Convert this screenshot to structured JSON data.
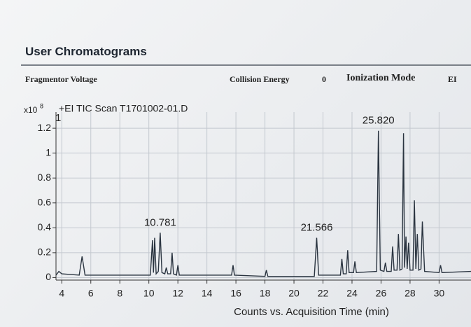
{
  "header": {
    "title": "User Chromatograms",
    "fields": [
      "Fragmentor Voltage",
      "Collision Energy",
      "0",
      "Ionization Mode",
      "EI"
    ]
  },
  "chart_data": {
    "type": "line",
    "title": "+EI TIC Scan T1701002-01.D",
    "x_label": "Counts vs. Acquisition Time (min)",
    "y_unit": "x10",
    "y_unit_exp": "8",
    "color": "#2a3440",
    "grid": true,
    "xlim": [
      3.6,
      32.2
    ],
    "xticks": [
      4,
      6,
      8,
      10,
      12,
      14,
      16,
      18,
      20,
      22,
      24,
      26,
      28,
      30
    ],
    "ylim": [
      -0.02,
      1.33
    ],
    "yticks": [
      0,
      0.2,
      0.4,
      0.6,
      0.8,
      1,
      1.2
    ],
    "x": [
      3.6,
      3.8,
      4.0,
      5.2,
      5.4,
      5.6,
      8.0,
      10.1,
      10.25,
      10.32,
      10.4,
      10.5,
      10.65,
      10.781,
      10.9,
      11.1,
      11.2,
      11.3,
      11.5,
      11.6,
      11.7,
      11.9,
      12.0,
      12.1,
      15.7,
      15.8,
      15.9,
      18.0,
      18.1,
      18.2,
      21.4,
      21.566,
      21.7,
      23.2,
      23.3,
      23.4,
      23.6,
      23.7,
      23.8,
      24.1,
      24.2,
      24.3,
      25.7,
      25.82,
      25.95,
      26.2,
      26.3,
      26.4,
      26.7,
      26.8,
      26.9,
      27.1,
      27.2,
      27.3,
      27.45,
      27.55,
      27.62,
      27.72,
      27.8,
      27.9,
      28.0,
      28.2,
      28.3,
      28.4,
      28.5,
      28.6,
      28.75,
      28.85,
      29.0,
      30.0,
      30.1,
      30.2,
      32.2
    ],
    "values": [
      0.02,
      0.05,
      0.03,
      0.02,
      0.17,
      0.02,
      0.02,
      0.02,
      0.3,
      0.04,
      0.32,
      0.03,
      0.05,
      0.36,
      0.04,
      0.03,
      0.08,
      0.03,
      0.03,
      0.2,
      0.03,
      0.02,
      0.1,
      0.02,
      0.02,
      0.1,
      0.02,
      0.01,
      0.06,
      0.01,
      0.01,
      0.32,
      0.02,
      0.02,
      0.15,
      0.03,
      0.03,
      0.22,
      0.04,
      0.04,
      0.13,
      0.04,
      0.05,
      1.18,
      0.06,
      0.05,
      0.12,
      0.05,
      0.05,
      0.25,
      0.06,
      0.06,
      0.35,
      0.06,
      0.07,
      1.16,
      0.08,
      0.33,
      0.07,
      0.28,
      0.06,
      0.06,
      0.62,
      0.07,
      0.35,
      0.06,
      0.07,
      0.45,
      0.05,
      0.04,
      0.1,
      0.04,
      0.05
    ],
    "annotations": [
      {
        "text": "1",
        "x": 3.75,
        "y": 1.2
      },
      {
        "text": "10.781",
        "x": 10.781,
        "y": 0.36
      },
      {
        "text": "21.566",
        "x": 21.566,
        "y": 0.32
      },
      {
        "text": "25.820",
        "x": 25.82,
        "y": 1.18
      }
    ]
  }
}
